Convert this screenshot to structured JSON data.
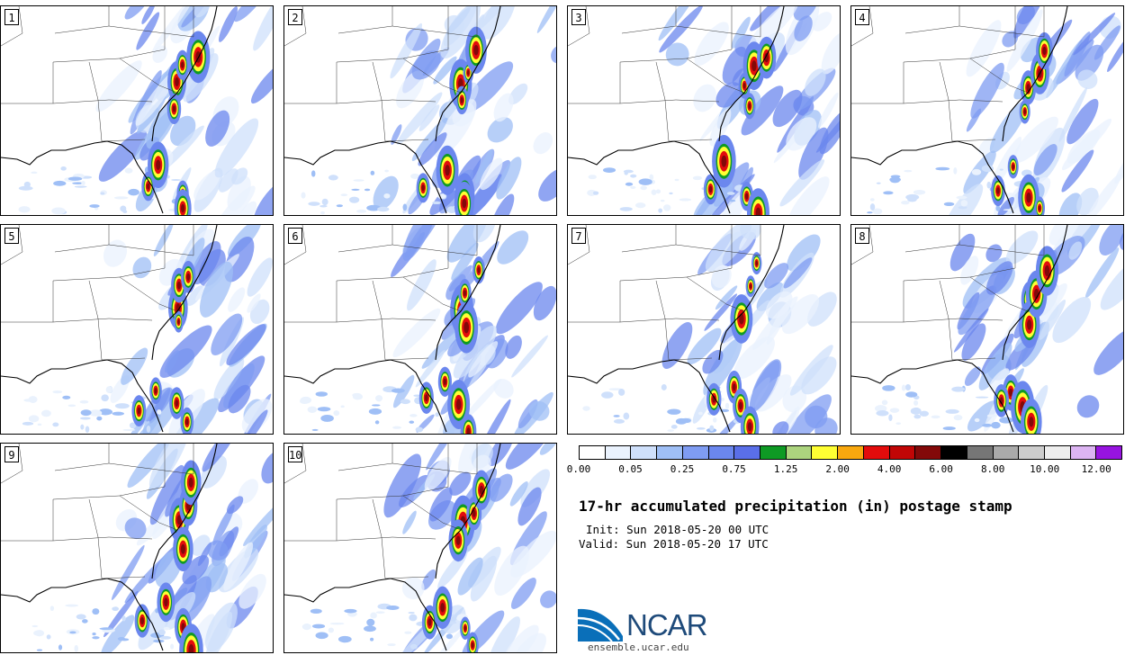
{
  "panels": [
    "1",
    "2",
    "3",
    "4",
    "5",
    "6",
    "7",
    "8",
    "9",
    "10"
  ],
  "colorbar": {
    "colors": [
      "#ffffff",
      "#eaf2fd",
      "#cfe0fb",
      "#9fbff6",
      "#7f9cf2",
      "#6b87ee",
      "#5a6fe8",
      "#0e9a24",
      "#acd47e",
      "#ffff33",
      "#f9a80e",
      "#e30c0c",
      "#c10606",
      "#830909",
      "#000000",
      "#767676",
      "#aaaaaa",
      "#cdcdcd",
      "#eeeeee",
      "#dcb4f2",
      "#9714e0"
    ],
    "ticks": [
      "0.00",
      "0.05",
      "0.25",
      "0.75",
      "1.25",
      "2.00",
      "4.00",
      "6.00",
      "8.00",
      "10.00",
      "12.00"
    ]
  },
  "title": "17-hr accumulated precipitation (in) postage stamp",
  "init_line": "Init: Sun 2018-05-20 00 UTC",
  "valid_line": "Valid: Sun 2018-05-20 17 UTC",
  "logo_text": "NCAR",
  "site": "ensemble.ucar.edu"
}
